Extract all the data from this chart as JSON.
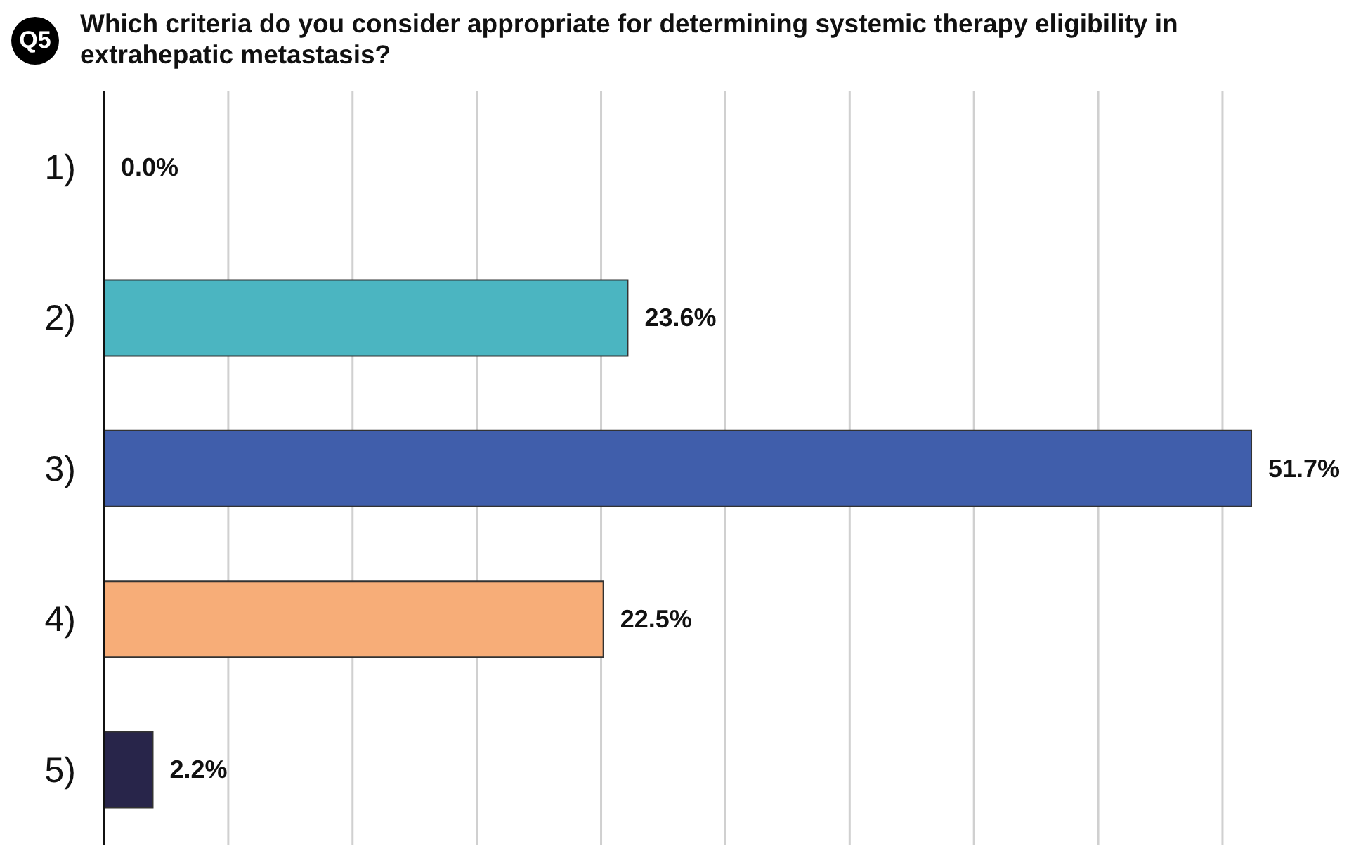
{
  "chart_data": {
    "type": "bar",
    "orientation": "horizontal",
    "title": "Which criteria do you consider appropriate for determining systemic therapy eligibility in extrahepatic metastasis?",
    "annotations": [
      "Q5"
    ],
    "categories": [
      "1)",
      "2)",
      "3)",
      "4)",
      "5)"
    ],
    "values": [
      0,
      23.6,
      51.7,
      22.5,
      2.2
    ],
    "colors": [
      "#4bb5c1",
      "#4bb5c1",
      "#405eab",
      "#f7ad78",
      "#28254a"
    ],
    "value_labels": [
      "0.0%",
      "23.6%",
      "51.7%",
      "22.5%",
      "2.2%"
    ],
    "xlim": [
      0,
      56.1
    ],
    "xticks": [
      {
        "value": 5.6,
        "label": null
      },
      {
        "value": 11.2,
        "label": null
      },
      {
        "value": 16.8,
        "label": null
      },
      {
        "value": 22.4,
        "label": null
      },
      {
        "value": 28,
        "label": null
      },
      {
        "value": 33.6,
        "label": null
      },
      {
        "value": 39.2,
        "label": null
      },
      {
        "value": 44.8,
        "label": null
      },
      {
        "value": 50.4,
        "label": null
      }
    ],
    "grid": "x",
    "tick_labels": "y",
    "legend": false
  }
}
